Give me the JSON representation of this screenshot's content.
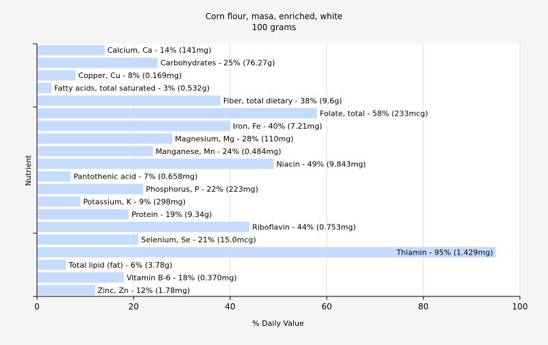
{
  "chart_data": {
    "type": "bar",
    "orientation": "horizontal",
    "title": "Corn flour, masa, enriched, white",
    "subtitle": "100 grams",
    "xlabel": "% Daily Value",
    "ylabel": "Nutrient",
    "xlim": [
      0,
      100
    ],
    "xticks": [
      "0",
      "20",
      "40",
      "60",
      "80",
      "100"
    ],
    "grid": true,
    "bar_color": "#c6dcff",
    "categories": [
      "Calcium, Ca",
      "Carbohydrates",
      "Copper, Cu",
      "Fatty acids, total saturated",
      "Fiber, total dietary",
      "Folate, total",
      "Iron, Fe",
      "Magnesium, Mg",
      "Manganese, Mn",
      "Niacin",
      "Pantothenic acid",
      "Phosphorus, P",
      "Potassium, K",
      "Protein",
      "Riboflavin",
      "Selenium, Se",
      "Thiamin",
      "Total lipid (fat)",
      "Vitamin B-6",
      "Zinc, Zn"
    ],
    "values": [
      14,
      25,
      8,
      3,
      38,
      58,
      40,
      28,
      24,
      49,
      7,
      22,
      9,
      19,
      44,
      21,
      95,
      6,
      18,
      12
    ],
    "labels": [
      "Calcium, Ca - 14% (141mg)",
      "Carbohydrates - 25% (76.27g)",
      "Copper, Cu - 8% (0.169mg)",
      "Fatty acids, total saturated - 3% (0.532g)",
      "Fiber, total dietary - 38% (9.6g)",
      "Folate, total - 58% (233mcg)",
      "Iron, Fe - 40% (7.21mg)",
      "Magnesium, Mg - 28% (110mg)",
      "Manganese, Mn - 24% (0.484mg)",
      "Niacin - 49% (9.843mg)",
      "Pantothenic acid - 7% (0.658mg)",
      "Phosphorus, P - 22% (223mg)",
      "Potassium, K - 9% (298mg)",
      "Protein - 19% (9.34g)",
      "Riboflavin - 44% (0.753mg)",
      "Selenium, Se - 21% (15.0mcg)",
      "Thiamin - 95% (1.429mg)",
      "Total lipid (fat) - 6% (3.78g)",
      "Vitamin B-6 - 18% (0.370mg)",
      "Zinc, Zn - 12% (1.78mg)"
    ]
  }
}
